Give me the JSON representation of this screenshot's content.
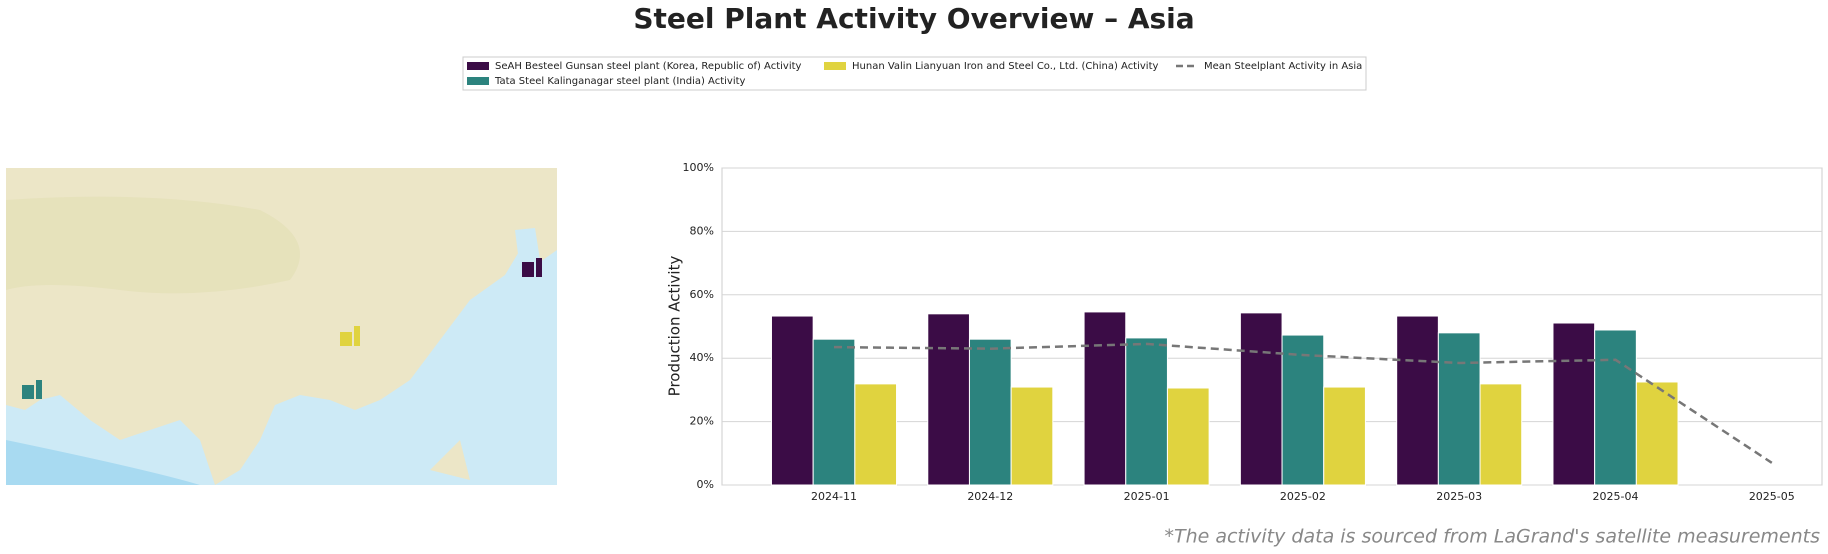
{
  "chart_data": {
    "type": "bar",
    "title": "Steel Plant Activity Overview – Asia",
    "y_label": "Production Activity",
    "footnote": "*The activity data is sourced from LaGrand's satellite measurements",
    "categories": [
      "2024-11",
      "2024-12",
      "2025-01",
      "2025-02",
      "2025-03",
      "2025-04",
      "2025-05"
    ],
    "series": [
      {
        "name": "SeAH Besteel Gunsan steel plant (Korea, Republic of) Activity",
        "type": "bar",
        "color": "#3b0c46",
        "values": [
          53.3,
          54,
          54.6,
          54.3,
          53.3,
          51.1,
          null
        ]
      },
      {
        "name": "Tata Steel Kalinganagar steel plant (India) Activity",
        "type": "bar",
        "color": "#2c837e",
        "values": [
          46,
          46,
          46.4,
          47.3,
          48,
          48.9,
          null
        ]
      },
      {
        "name": "Hunan Valin Lianyuan Iron and Steel Co., Ltd. (China) Activity",
        "type": "bar",
        "color": "#e0d33f",
        "values": [
          31.9,
          30.9,
          30.6,
          30.9,
          31.9,
          32.5,
          null
        ]
      },
      {
        "name": "Mean Steelplant Activity in Asia",
        "type": "line",
        "color": "#777777",
        "dashed": true,
        "values": [
          43.5,
          43,
          44.5,
          41,
          38.5,
          39.5,
          7
        ]
      }
    ],
    "ylim": [
      0,
      100
    ],
    "yticks": [
      {
        "value": 0,
        "label": "0%"
      },
      {
        "value": 20,
        "label": "20%"
      },
      {
        "value": 40,
        "label": "40%"
      },
      {
        "value": 60,
        "label": "60%"
      },
      {
        "value": 80,
        "label": "80%"
      },
      {
        "value": 100,
        "label": "100%"
      }
    ],
    "grid": true
  }
}
